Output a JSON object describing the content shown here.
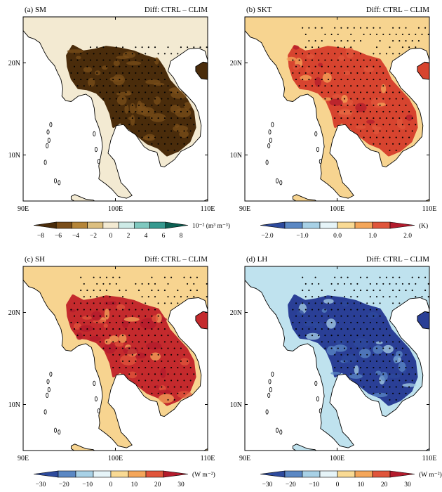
{
  "chart_data": [
    {
      "type": "map",
      "id": "a",
      "title": "(a) SM",
      "diff_label": "Diff: CTRL – CLIM",
      "lon_ticks": [
        "90E",
        "100E",
        "110E"
      ],
      "lat_ticks": [
        "20N",
        "10N"
      ],
      "lon_range": [
        90,
        110
      ],
      "lat_range": [
        5,
        25
      ],
      "colorbar": {
        "ticks": [
          "−8",
          "−6",
          "−4",
          "−2",
          "0",
          "2",
          "4",
          "6",
          "8"
        ],
        "tick_values": [
          -8,
          -6,
          -4,
          -2,
          0,
          2,
          4,
          6,
          8
        ],
        "unit": "10⁻² (m³ m⁻³)",
        "colors": [
          "#4a2c0b",
          "#7a4e1a",
          "#b58538",
          "#dcbf80",
          "#f3ead2",
          "#cdeae6",
          "#7fc8bf",
          "#35998f",
          "#0b5f52"
        ],
        "land_value_color": "#4a2c0b",
        "neutral_color": "#f3ead2"
      }
    },
    {
      "type": "map",
      "id": "b",
      "title": "(b) SKT",
      "diff_label": "Diff: CTRL – CLIM",
      "lon_ticks": [
        "90E",
        "100E",
        "110E"
      ],
      "lat_ticks": [
        "20N",
        "10N"
      ],
      "lon_range": [
        90,
        110
      ],
      "lat_range": [
        5,
        25
      ],
      "colorbar": {
        "ticks": [
          "−2.0",
          "−1.0",
          "0.0",
          "1.0",
          "2.0"
        ],
        "tick_values": [
          -2,
          -1,
          0,
          1,
          2
        ],
        "unit": "(K)",
        "colors": [
          "#2d4a9c",
          "#5b88c4",
          "#a8d1e6",
          "#e6f4f8",
          "#f9da94",
          "#f4a65a",
          "#e0553b",
          "#b31b2c"
        ],
        "land_value_color": "#d7442f",
        "neutral_color": "#f7d490"
      }
    },
    {
      "type": "map",
      "id": "c",
      "title": "(c) SH",
      "diff_label": "Diff: CTRL – CLIM",
      "lon_ticks": [
        "90E",
        "100E",
        "110E"
      ],
      "lat_ticks": [
        "20N",
        "10N"
      ],
      "lon_range": [
        90,
        110
      ],
      "lat_range": [
        5,
        25
      ],
      "colorbar": {
        "ticks": [
          "−30",
          "−20",
          "−10",
          "0",
          "10",
          "20",
          "30"
        ],
        "tick_values": [
          -30,
          -20,
          -10,
          0,
          10,
          20,
          30
        ],
        "unit": "(W m⁻²)",
        "colors": [
          "#2d4a9c",
          "#5b88c4",
          "#a8d1e6",
          "#e6f4f8",
          "#f9da94",
          "#f4a65a",
          "#e0553b",
          "#b31b2c"
        ],
        "land_value_color": "#c42a2d",
        "neutral_color": "#f7d490"
      }
    },
    {
      "type": "map",
      "id": "d",
      "title": "(d) LH",
      "diff_label": "Diff: CTRL – CLIM",
      "lon_ticks": [
        "90E",
        "100E",
        "110E"
      ],
      "lat_ticks": [
        "20N",
        "10N"
      ],
      "lon_range": [
        90,
        110
      ],
      "lat_range": [
        5,
        25
      ],
      "colorbar": {
        "ticks": [
          "−30",
          "−20",
          "−10",
          "0",
          "10",
          "20",
          "30"
        ],
        "tick_values": [
          -30,
          -20,
          -10,
          0,
          10,
          20,
          30
        ],
        "unit": "(W m⁻²)",
        "colors": [
          "#2d4a9c",
          "#5b88c4",
          "#a8d1e6",
          "#e6f4f8",
          "#f9da94",
          "#f4a65a",
          "#e0553b",
          "#b31b2c"
        ],
        "land_value_color": "#2a3f96",
        "neutral_color": "#bfe2ee"
      }
    }
  ]
}
